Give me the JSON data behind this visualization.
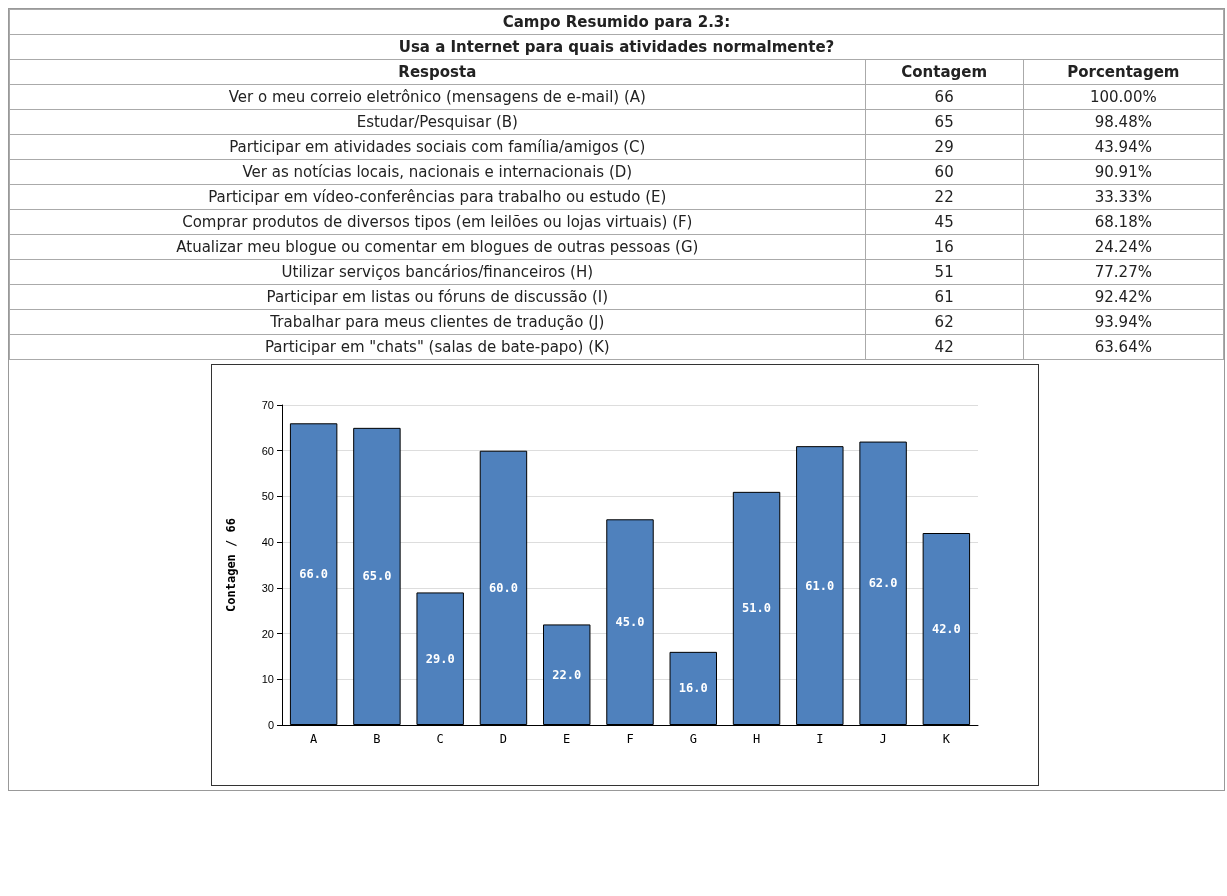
{
  "chart_data": [
    {
      "type": "other",
      "title": "Campo Resumido para 2.3:",
      "subtitle": "Usa a Internet para quais atividades normalmente?",
      "annotations": [
        "Resposta",
        "Contagem",
        "Porcentagem",
        "Ver o meu correio eletrônico (mensagens de e-mail) (A)",
        "66",
        "100.00%",
        "Estudar/Pesquisar (B)",
        "65",
        "98.48%",
        "Participar em atividades sociais com família/amigos (C)",
        "29",
        "43.94%",
        "Ver as notícias locais, nacionais e internacionais (D)",
        "60",
        "90.91%",
        "Participar em vídeo-conferências para trabalho ou estudo (E)",
        "22",
        "33.33%",
        "Comprar produtos de diversos tipos (em leilões ou lojas virtuais) (F)",
        "45",
        "68.18%",
        "Atualizar meu blogue ou comentar em blogues de outras pessoas (G)",
        "16",
        "24.24%",
        "Utilizar serviços bancários/financeiros (H)",
        "51",
        "77.27%",
        "Participar em listas ou fóruns de discussão (I)",
        "61",
        "92.42%",
        "Trabalhar para meus clientes de tradução (J)",
        "62",
        "93.94%",
        "Participar em \"chats\" (salas de bate-papo) (K)",
        "42",
        "63.64%"
      ]
    },
    {
      "type": "bar",
      "ylabel": "Contagen / 66",
      "categories": [
        "A",
        "B",
        "C",
        "D",
        "E",
        "F",
        "G",
        "H",
        "I",
        "J",
        "K"
      ],
      "values": [
        66,
        65,
        29,
        60,
        22,
        45,
        16,
        51,
        61,
        62,
        42
      ],
      "value_labels": [
        "66.0",
        "65.0",
        "29.0",
        "60.0",
        "22.0",
        "45.0",
        "16.0",
        "51.0",
        "61.0",
        "62.0",
        "42.0"
      ],
      "color": "#4f81bd",
      "ylim": [
        0,
        70
      ],
      "yticks": [
        0,
        10,
        20,
        30,
        40,
        50,
        60,
        70
      ],
      "grid": "y"
    }
  ]
}
